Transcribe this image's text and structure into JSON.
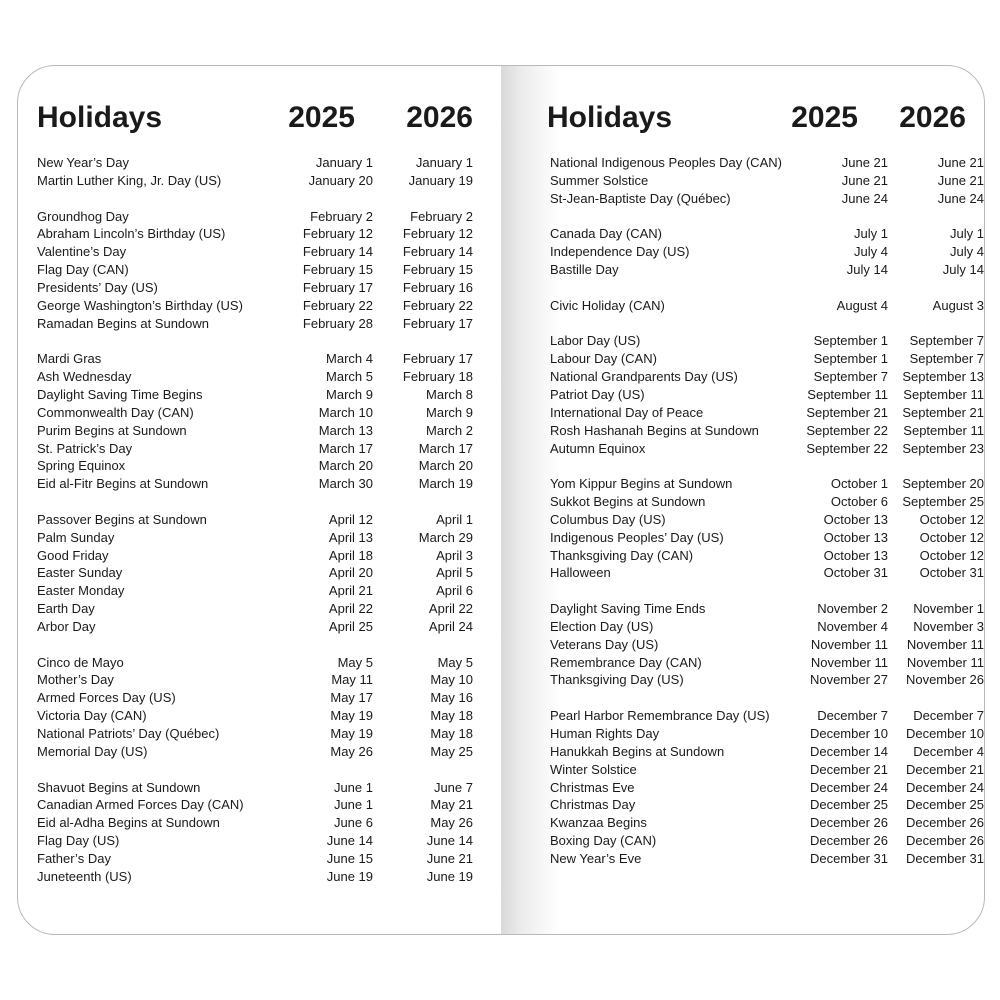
{
  "left_page": {
    "title": "Holidays",
    "year1": "2025",
    "year2": "2026",
    "groups": [
      [
        [
          "New Year’s Day",
          "January 1",
          "January 1"
        ],
        [
          "Martin Luther King, Jr. Day (US)",
          "January 20",
          "January 19"
        ]
      ],
      [
        [
          "Groundhog Day",
          "February 2",
          "February 2"
        ],
        [
          "Abraham Lincoln’s Birthday (US)",
          "February 12",
          "February 12"
        ],
        [
          "Valentine’s Day",
          "February 14",
          "February 14"
        ],
        [
          "Flag Day (CAN)",
          "February 15",
          "February 15"
        ],
        [
          "Presidents’ Day (US)",
          "February 17",
          "February 16"
        ],
        [
          "George Washington’s Birthday (US)",
          "February 22",
          "February 22"
        ],
        [
          "Ramadan Begins at Sundown",
          "February 28",
          "February 17"
        ]
      ],
      [
        [
          "Mardi Gras",
          "March 4",
          "February 17"
        ],
        [
          "Ash Wednesday",
          "March 5",
          "February 18"
        ],
        [
          "Daylight Saving Time Begins",
          "March 9",
          "March 8"
        ],
        [
          "Commonwealth Day (CAN)",
          "March 10",
          "March 9"
        ],
        [
          "Purim Begins at Sundown",
          "March 13",
          "March 2"
        ],
        [
          "St. Patrick’s Day",
          "March 17",
          "March 17"
        ],
        [
          "Spring Equinox",
          "March 20",
          "March 20"
        ],
        [
          "Eid al-Fitr Begins at Sundown",
          "March 30",
          "March 19"
        ]
      ],
      [
        [
          "Passover Begins at Sundown",
          "April 12",
          "April 1"
        ],
        [
          "Palm Sunday",
          "April 13",
          "March 29"
        ],
        [
          "Good Friday",
          "April 18",
          "April 3"
        ],
        [
          "Easter Sunday",
          "April 20",
          "April 5"
        ],
        [
          "Easter Monday",
          "April 21",
          "April 6"
        ],
        [
          "Earth Day",
          "April 22",
          "April 22"
        ],
        [
          "Arbor Day",
          "April 25",
          "April 24"
        ]
      ],
      [
        [
          "Cinco de Mayo",
          "May 5",
          "May 5"
        ],
        [
          "Mother’s Day",
          "May 11",
          "May 10"
        ],
        [
          "Armed Forces Day (US)",
          "May 17",
          "May 16"
        ],
        [
          "Victoria Day (CAN)",
          "May 19",
          "May 18"
        ],
        [
          "National Patriots’ Day (Québec)",
          "May 19",
          "May 18"
        ],
        [
          "Memorial Day (US)",
          "May 26",
          "May 25"
        ]
      ],
      [
        [
          "Shavuot Begins at Sundown",
          "June 1",
          "June 7"
        ],
        [
          "Canadian Armed Forces Day (CAN)",
          "June 1",
          "May 21"
        ],
        [
          "Eid al-Adha Begins at Sundown",
          "June 6",
          "May 26"
        ],
        [
          "Flag Day (US)",
          "June 14",
          "June 14"
        ],
        [
          "Father’s Day",
          "June 15",
          "June 21"
        ],
        [
          "Juneteenth (US)",
          "June 19",
          "June 19"
        ]
      ]
    ]
  },
  "right_page": {
    "title": "Holidays",
    "year1": "2025",
    "year2": "2026",
    "groups": [
      [
        [
          "National Indigenous Peoples Day (CAN)",
          "June 21",
          "June 21"
        ],
        [
          "Summer Solstice",
          "June 21",
          "June 21"
        ],
        [
          "St-Jean-Baptiste Day (Québec)",
          "June 24",
          "June 24"
        ]
      ],
      [
        [
          "Canada Day (CAN)",
          "July 1",
          "July 1"
        ],
        [
          "Independence Day (US)",
          "July 4",
          "July 4"
        ],
        [
          "Bastille Day",
          "July 14",
          "July 14"
        ]
      ],
      [
        [
          "Civic Holiday (CAN)",
          "August 4",
          "August 3"
        ]
      ],
      [
        [
          "Labor Day (US)",
          "September 1",
          "September 7"
        ],
        [
          "Labour Day (CAN)",
          "September 1",
          "September 7"
        ],
        [
          "National Grandparents Day (US)",
          "September 7",
          "September 13"
        ],
        [
          "Patriot Day (US)",
          "September 11",
          "September 11"
        ],
        [
          "International Day of Peace",
          "September 21",
          "September 21"
        ],
        [
          "Rosh Hashanah Begins at Sundown",
          "September 22",
          "September 11"
        ],
        [
          "Autumn Equinox",
          "September 22",
          "September 23"
        ]
      ],
      [
        [
          "Yom Kippur Begins at Sundown",
          "October 1",
          "September 20"
        ],
        [
          "Sukkot Begins at Sundown",
          "October 6",
          "September 25"
        ],
        [
          "Columbus Day (US)",
          "October 13",
          "October 12"
        ],
        [
          "Indigenous Peoples’ Day (US)",
          "October 13",
          "October 12"
        ],
        [
          "Thanksgiving Day (CAN)",
          "October 13",
          "October 12"
        ],
        [
          "Halloween",
          "October 31",
          "October 31"
        ]
      ],
      [
        [
          "Daylight Saving Time Ends",
          "November 2",
          "November 1"
        ],
        [
          "Election Day (US)",
          "November 4",
          "November 3"
        ],
        [
          "Veterans Day (US)",
          "November 11",
          "November 11"
        ],
        [
          "Remembrance Day (CAN)",
          "November 11",
          "November 11"
        ],
        [
          "Thanksgiving Day (US)",
          "November 27",
          "November 26"
        ]
      ],
      [
        [
          "Pearl Harbor Remembrance Day (US)",
          "December 7",
          "December 7"
        ],
        [
          "Human Rights Day",
          "December 10",
          "December 10"
        ],
        [
          "Hanukkah Begins at Sundown",
          "December 14",
          "December 4"
        ],
        [
          "Winter Solstice",
          "December 21",
          "December 21"
        ],
        [
          "Christmas Eve",
          "December 24",
          "December 24"
        ],
        [
          "Christmas Day",
          "December 25",
          "December 25"
        ],
        [
          "Kwanzaa Begins",
          "December 26",
          "December 26"
        ],
        [
          "Boxing Day (CAN)",
          "December 26",
          "December 26"
        ],
        [
          "New Year’s Eve",
          "December 31",
          "December 31"
        ]
      ]
    ]
  }
}
